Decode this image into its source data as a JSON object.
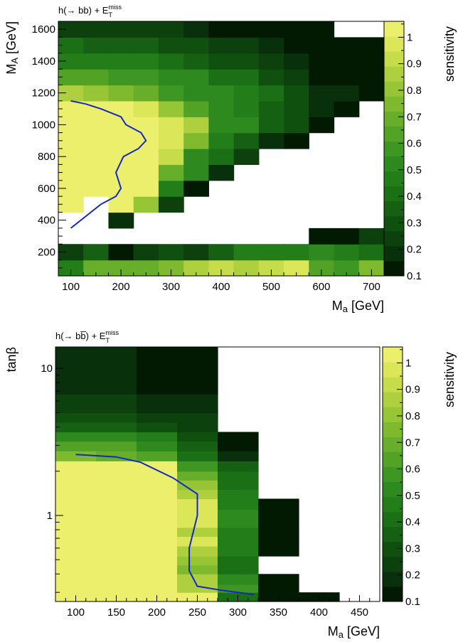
{
  "palette": [
    "#021a02",
    "#08300a",
    "#0c400d",
    "#10500f",
    "#156013",
    "#1b7016",
    "#237e1a",
    "#2e8a1f",
    "#3e9623",
    "#52a226",
    "#67ae2a",
    "#7fba2e",
    "#96c535",
    "#afd03e",
    "#c6dc4a",
    "#dbe658",
    "#ecef6c"
  ],
  "contour_color": "#1428c8",
  "chart_data": [
    {
      "type": "heatmap",
      "title": "h(→ bb) + E",
      "title_sub": "T",
      "title_sup": "miss",
      "xlabel": "M",
      "xlabel_sub": "a",
      "xlabel_unit": " [GeV]",
      "ylabel": "M",
      "ylabel_sub": "A",
      "ylabel_unit": " [GeV]",
      "zlabel": "sensitivity",
      "xlim": [
        75,
        725
      ],
      "ylim": [
        50,
        1650
      ],
      "zlim": [
        0.1,
        1.06
      ],
      "xticks": [
        100,
        200,
        300,
        400,
        500,
        600,
        700
      ],
      "yticks": [
        200,
        400,
        600,
        800,
        1000,
        1200,
        1400,
        1600
      ],
      "zticks": [
        0.1,
        0.2,
        0.3,
        0.4,
        0.5,
        0.6,
        0.7,
        0.8,
        0.9,
        1
      ],
      "x_edges": [
        75,
        125,
        175,
        225,
        275,
        325,
        375,
        425,
        475,
        525,
        575,
        625,
        675,
        725
      ],
      "y_edges": [
        50,
        150,
        250,
        350,
        450,
        550,
        650,
        750,
        850,
        950,
        1050,
        1150,
        1250,
        1350,
        1450,
        1550,
        1650
      ],
      "z": [
        [
          0.45,
          0.7,
          0.7,
          0.7,
          0.75,
          0.85,
          0.9,
          0.85,
          0.9,
          0.95,
          0.65,
          0.6,
          0.75,
          0.4
        ],
        [
          0.25,
          0.35,
          0.15,
          0.25,
          0.3,
          0.25,
          0.35,
          0.45,
          0.45,
          0.45,
          0.55,
          0.45,
          0.4,
          0.4
        ],
        [
          null,
          null,
          null,
          null,
          null,
          null,
          null,
          null,
          null,
          null,
          0.15,
          0.15,
          0.25,
          0.15
        ],
        [
          null,
          null,
          0.2,
          null,
          null,
          null,
          null,
          null,
          null,
          null,
          null,
          null,
          null,
          null
        ],
        [
          1.05,
          null,
          1.05,
          0.8,
          0.25,
          null,
          null,
          null,
          null,
          null,
          null,
          null,
          null,
          null
        ],
        [
          1.05,
          1.05,
          1.05,
          1.05,
          0.45,
          0.15,
          null,
          null,
          null,
          null,
          null,
          null,
          null,
          null
        ],
        [
          1.05,
          1.05,
          1.05,
          1.05,
          0.7,
          0.5,
          0.2,
          null,
          null,
          null,
          null,
          null,
          null,
          null
        ],
        [
          1.05,
          1.05,
          1.05,
          1.05,
          0.9,
          0.55,
          0.4,
          0.25,
          null,
          null,
          null,
          null,
          null,
          null
        ],
        [
          1.05,
          1.05,
          1.05,
          1.05,
          0.95,
          0.75,
          0.45,
          0.35,
          0.2,
          0.1,
          null,
          null,
          null,
          null
        ],
        [
          1.05,
          1.05,
          1.05,
          1.05,
          1.0,
          0.85,
          0.55,
          0.5,
          0.35,
          0.3,
          0.15,
          null,
          null,
          null
        ],
        [
          1.05,
          1.05,
          1.05,
          0.95,
          0.8,
          0.65,
          0.55,
          0.45,
          0.35,
          0.3,
          0.2,
          0.15,
          null,
          null
        ],
        [
          0.85,
          0.8,
          0.75,
          0.7,
          0.6,
          0.55,
          0.5,
          0.45,
          0.4,
          0.3,
          0.2,
          0.2,
          0.15,
          null
        ],
        [
          0.65,
          0.65,
          0.6,
          0.6,
          0.55,
          0.5,
          0.4,
          0.4,
          0.3,
          0.25,
          0.15,
          0.1,
          0.1,
          0.1
        ],
        [
          0.45,
          0.45,
          0.45,
          0.45,
          0.4,
          0.35,
          0.3,
          0.3,
          0.25,
          0.2,
          0.15,
          0.1,
          0.1,
          0.1
        ],
        [
          0.4,
          0.35,
          0.35,
          0.35,
          0.3,
          0.3,
          0.25,
          0.25,
          0.2,
          0.15,
          0.1,
          0.1,
          0.1,
          null
        ],
        [
          0.25,
          0.25,
          0.25,
          0.25,
          0.25,
          0.2,
          0.15,
          0.15,
          0.15,
          0.15,
          0.1,
          null,
          null,
          null
        ]
      ],
      "contour_x": [
        100,
        130,
        160,
        200,
        210,
        240,
        250,
        235,
        205,
        190,
        200,
        190,
        160,
        100
      ],
      "contour_y": [
        1150,
        1130,
        1100,
        1050,
        1000,
        950,
        900,
        850,
        800,
        700,
        600,
        550,
        500,
        350
      ]
    },
    {
      "type": "heatmap",
      "title": "h(→ bb̅) + E",
      "title_sub": "T",
      "title_sup": "miss",
      "xlabel": "M",
      "xlabel_sub": "a",
      "xlabel_unit": " [GeV]",
      "ylabel": "tanβ",
      "ylabel_sub": "",
      "ylabel_unit": "",
      "zlabel": "sensitivity",
      "ylog": true,
      "xlim": [
        75,
        475
      ],
      "ylim": [
        0.26,
        14
      ],
      "zlim": [
        0.1,
        1.06
      ],
      "xticks": [
        100,
        150,
        200,
        250,
        300,
        350,
        400,
        450
      ],
      "yticks_major": [
        1,
        10
      ],
      "zticks": [
        0.1,
        0.2,
        0.3,
        0.4,
        0.5,
        0.6,
        0.7,
        0.8,
        0.9,
        1
      ],
      "x_edges": [
        75,
        125,
        175,
        225,
        275,
        325,
        375,
        425,
        475
      ],
      "y_edges": [
        0.26,
        0.3,
        0.34,
        0.4,
        0.46,
        0.53,
        0.62,
        0.72,
        0.83,
        0.96,
        1.1,
        1.3,
        1.5,
        1.74,
        2.0,
        2.35,
        2.75,
        3.2,
        3.7,
        4.3,
        5.0,
        5.8,
        6.7,
        7.8,
        9.0,
        10.5,
        12.2,
        14
      ],
      "z": [
        [
          1.05,
          1.05,
          1.05,
          1.05,
          0.4,
          0.05,
          0.05,
          null
        ],
        [
          1.05,
          1.05,
          1.05,
          0.85,
          0.6,
          0.15,
          null,
          null
        ],
        [
          1.05,
          1.05,
          1.05,
          0.85,
          0.5,
          0.15,
          null,
          null
        ],
        [
          1.05,
          1.05,
          1.05,
          0.75,
          0.4,
          null,
          null,
          null
        ],
        [
          1.05,
          1.05,
          1.05,
          0.8,
          0.4,
          null,
          null,
          null
        ],
        [
          1.05,
          1.05,
          1.05,
          0.85,
          0.45,
          0.15,
          null,
          null
        ],
        [
          1.05,
          1.05,
          1.05,
          0.95,
          0.45,
          0.15,
          null,
          null
        ],
        [
          1.05,
          1.05,
          1.05,
          0.85,
          0.45,
          0.15,
          null,
          null
        ],
        [
          1.05,
          1.05,
          1.05,
          0.95,
          0.5,
          0.15,
          null,
          null
        ],
        [
          1.05,
          1.05,
          1.05,
          0.95,
          0.5,
          0.15,
          null,
          null
        ],
        [
          1.05,
          1.05,
          1.05,
          0.95,
          0.45,
          0.15,
          null,
          null
        ],
        [
          1.05,
          1.05,
          1.05,
          0.85,
          0.45,
          null,
          null,
          null
        ],
        [
          1.05,
          1.05,
          1.05,
          0.8,
          0.4,
          null,
          null,
          null
        ],
        [
          1.05,
          1.05,
          1.05,
          0.7,
          0.4,
          null,
          null,
          null
        ],
        [
          1.05,
          1.05,
          1.05,
          0.6,
          0.35,
          null,
          null,
          null
        ],
        [
          0.75,
          0.7,
          0.65,
          0.4,
          0.2,
          null,
          null,
          null
        ],
        [
          0.65,
          0.65,
          0.55,
          0.35,
          0.1,
          null,
          null,
          null
        ],
        [
          0.55,
          0.5,
          0.45,
          0.3,
          0.1,
          null,
          null,
          null
        ],
        [
          0.35,
          0.35,
          0.3,
          0.25,
          null,
          null,
          null,
          null
        ],
        [
          0.3,
          0.3,
          0.25,
          0.25,
          null,
          null,
          null,
          null
        ],
        [
          0.25,
          0.25,
          0.2,
          0.2,
          null,
          null,
          null,
          null
        ],
        [
          0.25,
          0.25,
          0.2,
          0.2,
          null,
          null,
          null,
          null
        ],
        [
          0.2,
          0.2,
          0.15,
          0.15,
          null,
          null,
          null,
          null
        ],
        [
          0.2,
          0.2,
          0.15,
          0.15,
          null,
          null,
          null,
          null
        ],
        [
          0.2,
          0.2,
          0.15,
          0.15,
          null,
          null,
          null,
          null
        ],
        [
          0.2,
          0.2,
          0.15,
          0.15,
          null,
          null,
          null,
          null
        ],
        [
          0.2,
          0.2,
          0.15,
          0.15,
          null,
          null,
          null,
          null
        ]
      ],
      "contour_x": [
        100,
        150,
        180,
        220,
        250,
        250,
        240,
        240,
        250,
        280,
        320
      ],
      "contour_y": [
        2.6,
        2.5,
        2.3,
        1.8,
        1.4,
        1.0,
        0.6,
        0.42,
        0.33,
        0.31,
        0.29
      ]
    }
  ]
}
